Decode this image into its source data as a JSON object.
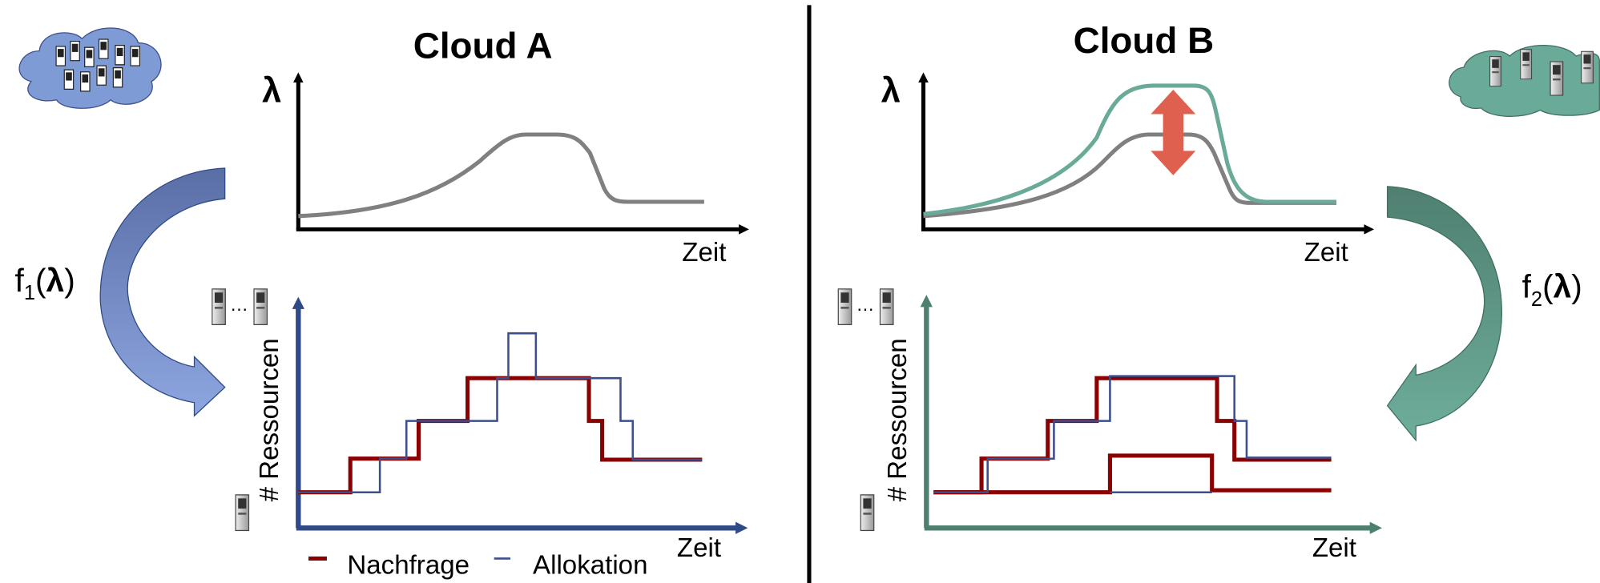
{
  "panels": [
    {
      "title": "Cloud A",
      "top_y_label": "λ",
      "top_x_label": "Zeit",
      "bottom_y_label": "# Ressourcen",
      "bottom_x_label": "Zeit",
      "function_label": {
        "prefix": "f",
        "subscript": "1",
        "open": "(",
        "argument": "λ",
        "close": ")"
      }
    },
    {
      "title": "Cloud B",
      "top_y_label": "λ",
      "top_x_label": "Zeit",
      "bottom_y_label": "# Ressourcen",
      "bottom_x_label": "Zeit",
      "function_label": {
        "prefix": "f",
        "subscript": "2",
        "open": "(",
        "argument": "λ",
        "close": ")"
      }
    }
  ],
  "legend": {
    "items": [
      "Nachfrage",
      "Allokation"
    ],
    "ellipsis": "…"
  }
}
